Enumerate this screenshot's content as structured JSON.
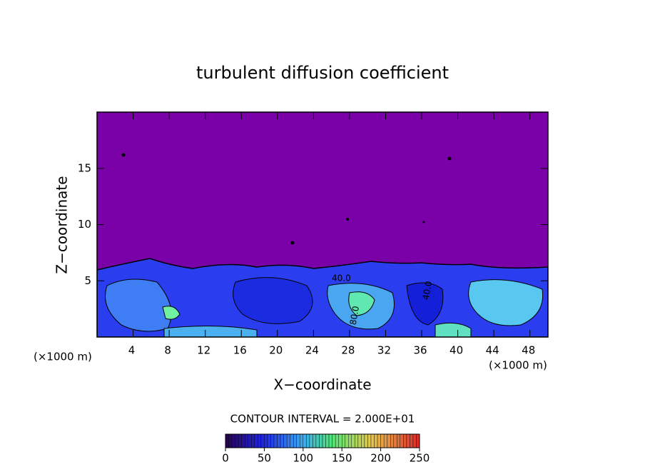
{
  "chart_data": {
    "type": "contour",
    "title": "turbulent diffusion coefficient",
    "xlabel": "X−coordinate",
    "ylabel": "Z−coordinate",
    "unit_label": "(×1000 m)",
    "annotation": "CONTOUR INTERVAL = 2.000E+01",
    "contour_labels": [
      "40.0",
      "40.0",
      "80.0"
    ],
    "xlim": [
      0,
      50
    ],
    "xticks": [
      4,
      8,
      12,
      16,
      20,
      24,
      28,
      32,
      36,
      40,
      44,
      48
    ],
    "ylim": [
      0,
      20
    ],
    "yticks": [
      5,
      10,
      15
    ],
    "clim": [
      0,
      250
    ],
    "cticks": [
      0,
      50,
      100,
      150,
      200,
      250
    ]
  }
}
